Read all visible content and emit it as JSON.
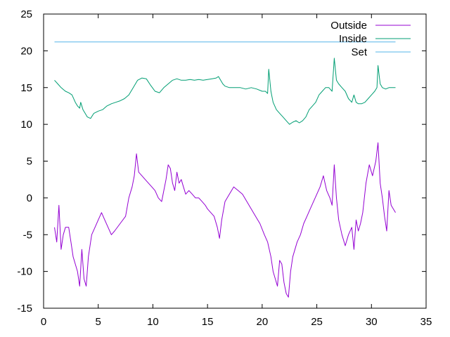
{
  "chart_data": {
    "type": "line",
    "title": "",
    "xlabel": "",
    "ylabel": "",
    "xlim": [
      0,
      35
    ],
    "ylim": [
      -15,
      25
    ],
    "xticks": [
      "0",
      "5",
      "10",
      "15",
      "20",
      "25",
      "30",
      "35"
    ],
    "yticks": [
      "-15",
      "-10",
      "-5",
      "0",
      "5",
      "10",
      "15",
      "20",
      "25"
    ],
    "grid": false,
    "legend_position": "top-right",
    "series": [
      {
        "name": "Outside",
        "color": "#9400d3",
        "points": [
          [
            1.0,
            -4.0
          ],
          [
            1.2,
            -6.0
          ],
          [
            1.4,
            -1.0
          ],
          [
            1.6,
            -7.0
          ],
          [
            1.8,
            -5.0
          ],
          [
            2.0,
            -4.0
          ],
          [
            2.3,
            -4.0
          ],
          [
            2.5,
            -6.0
          ],
          [
            2.7,
            -8.0
          ],
          [
            2.9,
            -9.0
          ],
          [
            3.1,
            -10.0
          ],
          [
            3.3,
            -12.0
          ],
          [
            3.5,
            -7.0
          ],
          [
            3.7,
            -11.0
          ],
          [
            3.9,
            -12.0
          ],
          [
            4.1,
            -8.0
          ],
          [
            4.4,
            -5.0
          ],
          [
            4.7,
            -4.0
          ],
          [
            5.0,
            -3.0
          ],
          [
            5.3,
            -2.0
          ],
          [
            5.6,
            -3.0
          ],
          [
            5.9,
            -4.0
          ],
          [
            6.2,
            -5.0
          ],
          [
            6.5,
            -4.5
          ],
          [
            7.0,
            -3.5
          ],
          [
            7.5,
            -2.5
          ],
          [
            7.8,
            0.0
          ],
          [
            8.1,
            1.5
          ],
          [
            8.3,
            3.0
          ],
          [
            8.5,
            6.0
          ],
          [
            8.7,
            3.5
          ],
          [
            9.0,
            3.0
          ],
          [
            9.3,
            2.5
          ],
          [
            9.6,
            2.0
          ],
          [
            9.9,
            1.5
          ],
          [
            10.2,
            1.0
          ],
          [
            10.5,
            0.0
          ],
          [
            10.8,
            -0.5
          ],
          [
            11.0,
            1.0
          ],
          [
            11.2,
            2.5
          ],
          [
            11.4,
            4.5
          ],
          [
            11.6,
            4.0
          ],
          [
            11.8,
            2.0
          ],
          [
            12.0,
            1.0
          ],
          [
            12.2,
            3.5
          ],
          [
            12.4,
            2.0
          ],
          [
            12.6,
            2.5
          ],
          [
            12.8,
            1.5
          ],
          [
            13.0,
            0.5
          ],
          [
            13.3,
            1.0
          ],
          [
            13.6,
            0.5
          ],
          [
            13.9,
            0.0
          ],
          [
            14.2,
            0.0
          ],
          [
            14.5,
            -0.5
          ],
          [
            14.8,
            -1.0
          ],
          [
            15.0,
            -1.5
          ],
          [
            15.3,
            -2.0
          ],
          [
            15.6,
            -2.5
          ],
          [
            15.9,
            -4.0
          ],
          [
            16.1,
            -5.5
          ],
          [
            16.3,
            -3.0
          ],
          [
            16.6,
            -0.5
          ],
          [
            17.0,
            0.5
          ],
          [
            17.4,
            1.5
          ],
          [
            17.8,
            1.0
          ],
          [
            18.2,
            0.5
          ],
          [
            18.6,
            -0.5
          ],
          [
            19.0,
            -1.5
          ],
          [
            19.4,
            -2.5
          ],
          [
            19.8,
            -3.5
          ],
          [
            20.2,
            -5.0
          ],
          [
            20.5,
            -6.0
          ],
          [
            20.8,
            -8.0
          ],
          [
            21.0,
            -10.0
          ],
          [
            21.2,
            -11.0
          ],
          [
            21.4,
            -12.0
          ],
          [
            21.6,
            -8.5
          ],
          [
            21.8,
            -9.0
          ],
          [
            22.0,
            -11.5
          ],
          [
            22.2,
            -13.0
          ],
          [
            22.4,
            -13.5
          ],
          [
            22.6,
            -10.0
          ],
          [
            22.8,
            -8.0
          ],
          [
            23.0,
            -7.0
          ],
          [
            23.2,
            -6.0
          ],
          [
            23.5,
            -5.0
          ],
          [
            23.8,
            -3.5
          ],
          [
            24.1,
            -2.5
          ],
          [
            24.4,
            -1.5
          ],
          [
            24.7,
            -0.5
          ],
          [
            25.0,
            0.5
          ],
          [
            25.3,
            1.5
          ],
          [
            25.6,
            3.0
          ],
          [
            25.9,
            1.0
          ],
          [
            26.2,
            0.0
          ],
          [
            26.4,
            -1.0
          ],
          [
            26.6,
            4.5
          ],
          [
            26.8,
            0.0
          ],
          [
            27.0,
            -3.0
          ],
          [
            27.3,
            -5.0
          ],
          [
            27.6,
            -6.5
          ],
          [
            27.9,
            -5.0
          ],
          [
            28.2,
            -4.0
          ],
          [
            28.4,
            -7.0
          ],
          [
            28.6,
            -3.0
          ],
          [
            28.8,
            -4.5
          ],
          [
            29.0,
            -3.5
          ],
          [
            29.2,
            -2.0
          ],
          [
            29.5,
            2.0
          ],
          [
            29.8,
            4.5
          ],
          [
            30.1,
            3.0
          ],
          [
            30.4,
            5.0
          ],
          [
            30.6,
            7.5
          ],
          [
            30.8,
            2.0
          ],
          [
            31.0,
            0.0
          ],
          [
            31.2,
            -2.5
          ],
          [
            31.4,
            -4.5
          ],
          [
            31.6,
            1.0
          ],
          [
            31.8,
            -1.0
          ],
          [
            32.0,
            -1.5
          ],
          [
            32.2,
            -2.0
          ]
        ]
      },
      {
        "name": "Inside",
        "color": "#009e73",
        "points": [
          [
            1.0,
            16.0
          ],
          [
            1.3,
            15.5
          ],
          [
            1.6,
            15.0
          ],
          [
            2.0,
            14.5
          ],
          [
            2.3,
            14.3
          ],
          [
            2.6,
            14.0
          ],
          [
            2.9,
            13.0
          ],
          [
            3.1,
            12.5
          ],
          [
            3.3,
            12.2
          ],
          [
            3.4,
            13.0
          ],
          [
            3.6,
            12.0
          ],
          [
            3.8,
            11.5
          ],
          [
            4.0,
            11.0
          ],
          [
            4.3,
            10.8
          ],
          [
            4.6,
            11.5
          ],
          [
            5.0,
            11.8
          ],
          [
            5.4,
            12.0
          ],
          [
            5.8,
            12.5
          ],
          [
            6.2,
            12.8
          ],
          [
            6.6,
            13.0
          ],
          [
            7.0,
            13.2
          ],
          [
            7.4,
            13.5
          ],
          [
            7.8,
            14.0
          ],
          [
            8.2,
            15.0
          ],
          [
            8.6,
            16.0
          ],
          [
            9.0,
            16.3
          ],
          [
            9.4,
            16.2
          ],
          [
            9.8,
            15.3
          ],
          [
            10.2,
            14.5
          ],
          [
            10.6,
            14.3
          ],
          [
            11.0,
            15.0
          ],
          [
            11.4,
            15.5
          ],
          [
            11.8,
            16.0
          ],
          [
            12.2,
            16.2
          ],
          [
            12.6,
            16.0
          ],
          [
            13.0,
            16.0
          ],
          [
            13.4,
            16.1
          ],
          [
            13.8,
            16.0
          ],
          [
            14.2,
            16.1
          ],
          [
            14.6,
            16.0
          ],
          [
            15.0,
            16.1
          ],
          [
            15.4,
            16.2
          ],
          [
            15.8,
            16.3
          ],
          [
            16.0,
            16.5
          ],
          [
            16.2,
            16.0
          ],
          [
            16.4,
            15.5
          ],
          [
            16.6,
            15.2
          ],
          [
            17.0,
            15.0
          ],
          [
            17.5,
            15.0
          ],
          [
            18.0,
            15.0
          ],
          [
            18.5,
            14.8
          ],
          [
            19.0,
            15.0
          ],
          [
            19.5,
            14.8
          ],
          [
            20.0,
            14.5
          ],
          [
            20.3,
            14.5
          ],
          [
            20.5,
            14.2
          ],
          [
            20.6,
            17.5
          ],
          [
            20.8,
            14.5
          ],
          [
            21.0,
            13.0
          ],
          [
            21.3,
            12.0
          ],
          [
            21.6,
            11.5
          ],
          [
            21.9,
            11.0
          ],
          [
            22.2,
            10.5
          ],
          [
            22.5,
            10.0
          ],
          [
            22.8,
            10.3
          ],
          [
            23.1,
            10.5
          ],
          [
            23.4,
            10.2
          ],
          [
            23.7,
            10.5
          ],
          [
            24.0,
            11.0
          ],
          [
            24.3,
            12.0
          ],
          [
            24.6,
            12.5
          ],
          [
            24.9,
            13.0
          ],
          [
            25.2,
            14.0
          ],
          [
            25.5,
            14.5
          ],
          [
            25.8,
            15.0
          ],
          [
            26.1,
            15.0
          ],
          [
            26.4,
            14.5
          ],
          [
            26.6,
            19.0
          ],
          [
            26.8,
            16.0
          ],
          [
            27.0,
            15.5
          ],
          [
            27.3,
            15.0
          ],
          [
            27.6,
            14.5
          ],
          [
            27.9,
            13.5
          ],
          [
            28.2,
            13.0
          ],
          [
            28.4,
            14.0
          ],
          [
            28.6,
            13.0
          ],
          [
            28.8,
            12.8
          ],
          [
            29.1,
            12.8
          ],
          [
            29.4,
            13.0
          ],
          [
            29.7,
            13.5
          ],
          [
            30.0,
            14.0
          ],
          [
            30.3,
            14.5
          ],
          [
            30.5,
            15.0
          ],
          [
            30.6,
            18.0
          ],
          [
            30.8,
            15.5
          ],
          [
            31.0,
            15.0
          ],
          [
            31.3,
            14.8
          ],
          [
            31.6,
            15.0
          ],
          [
            31.9,
            15.0
          ],
          [
            32.2,
            15.0
          ]
        ]
      },
      {
        "name": "Set",
        "color": "#56b4e9",
        "points": [
          [
            1.0,
            21.2
          ],
          [
            32.2,
            21.2
          ]
        ]
      }
    ]
  }
}
